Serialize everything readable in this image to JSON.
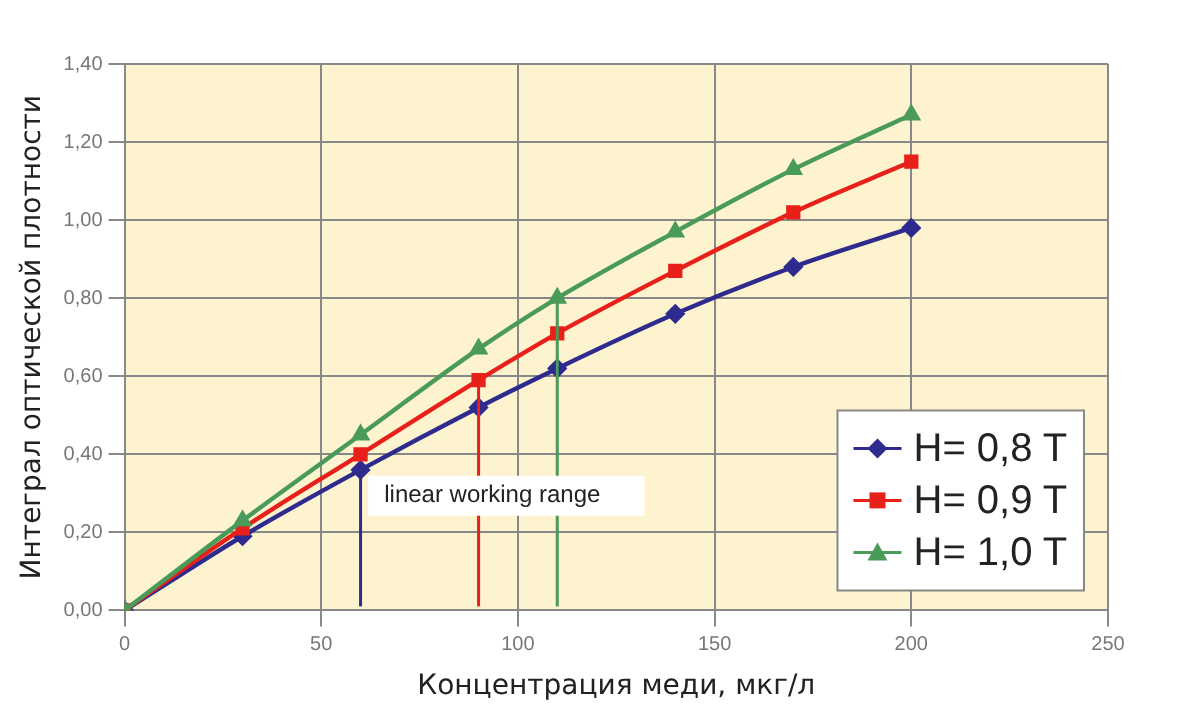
{
  "chart_data": {
    "type": "line",
    "xlabel": "Концентрация меди, мкг/л",
    "ylabel": "Интеграл оптической плотности",
    "x": [
      0,
      30,
      60,
      90,
      110,
      140,
      170,
      200
    ],
    "series": [
      {
        "name": "H= 0,8 T",
        "color": "#2e2a8e",
        "marker": "diamond",
        "values": [
          0,
          0.19,
          0.36,
          0.52,
          0.62,
          0.76,
          0.88,
          0.98
        ]
      },
      {
        "name": "H= 0,9 T",
        "color": "#e8201a",
        "marker": "square",
        "values": [
          0,
          0.21,
          0.4,
          0.59,
          0.71,
          0.87,
          1.02,
          1.15
        ]
      },
      {
        "name": "H= 1,0 T",
        "color": "#4a9a5a",
        "marker": "triangle",
        "values": [
          0,
          0.23,
          0.45,
          0.67,
          0.8,
          0.97,
          1.13,
          1.27
        ]
      }
    ],
    "xlim": [
      0,
      250
    ],
    "xticks": [
      0,
      50,
      100,
      150,
      200,
      250
    ],
    "ylim": [
      0,
      1.4
    ],
    "yticks": [
      {
        "value": 0,
        "label": "0,00"
      },
      {
        "value": 0.2,
        "label": "0,20"
      },
      {
        "value": 0.4,
        "label": "0,40"
      },
      {
        "value": 0.6,
        "label": "0,60"
      },
      {
        "value": 0.8,
        "label": "0,80"
      },
      {
        "value": 1,
        "label": "1,00"
      },
      {
        "value": 1.2,
        "label": "1,20"
      },
      {
        "value": 1.4,
        "label": "1,40"
      }
    ],
    "ref_lines": [
      {
        "axis": "x",
        "value": 60,
        "color": "#2e2a8e"
      },
      {
        "axis": "x",
        "value": 90,
        "color": "#e8201a"
      },
      {
        "axis": "x",
        "value": 110,
        "color": "#4a9a5a"
      }
    ],
    "annotations": [
      "linear working range"
    ],
    "grid": true,
    "legend": "bottom right"
  }
}
